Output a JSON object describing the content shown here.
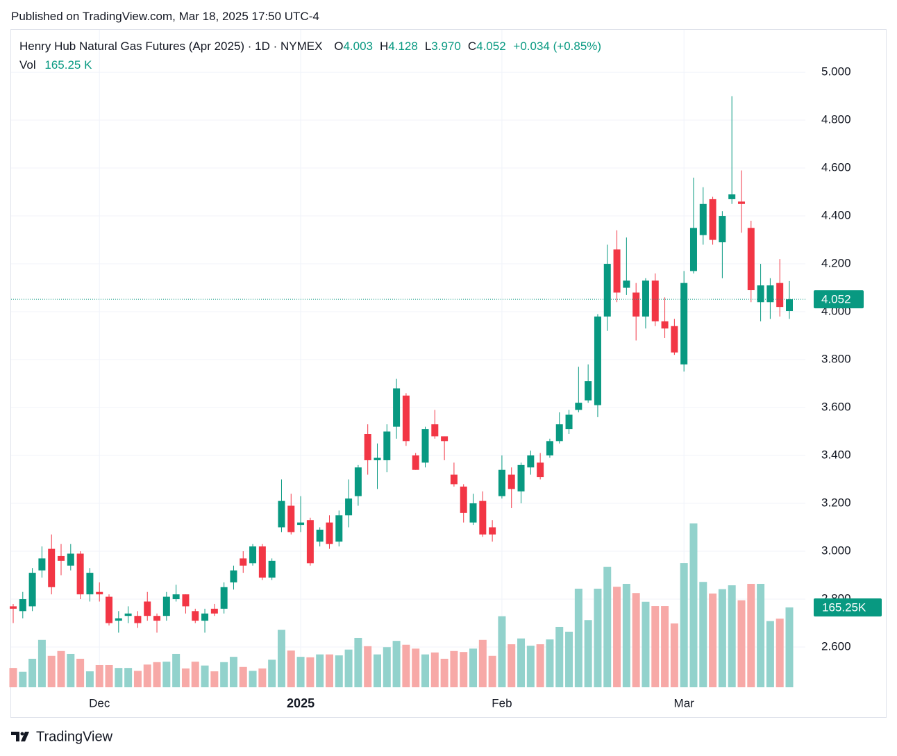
{
  "header": {
    "published": "Published on TradingView.com, Mar 18, 2025 17:50 UTC-4",
    "symbol": "Henry Hub Natural Gas Futures (Apr 2025) · 1D · NYMEX",
    "ohlc": [
      {
        "label": "O",
        "value": "4.003"
      },
      {
        "label": "H",
        "value": "4.128"
      },
      {
        "label": "L",
        "value": "3.970"
      },
      {
        "label": "C",
        "value": "4.052"
      }
    ],
    "change": "+0.034 (+0.85%)",
    "volume_label": "Vol",
    "volume_value": "165.25 K"
  },
  "footer": {
    "brand": "TradingView"
  },
  "chart_data": {
    "type": "candlestick",
    "categories": [
      null,
      null,
      null,
      null,
      null,
      null,
      null,
      null,
      null,
      "Dec",
      null,
      null,
      null,
      null,
      null,
      null,
      null,
      null,
      null,
      null,
      null,
      null,
      null,
      null,
      null,
      null,
      null,
      null,
      null,
      null,
      "2025",
      null,
      null,
      null,
      null,
      null,
      null,
      null,
      null,
      null,
      null,
      null,
      null,
      null,
      null,
      null,
      null,
      null,
      null,
      null,
      null,
      "Feb",
      null,
      null,
      null,
      null,
      null,
      null,
      null,
      null,
      null,
      null,
      null,
      null,
      null,
      null,
      null,
      null,
      null,
      null,
      "Mar",
      null,
      null,
      null,
      null,
      null,
      null,
      null,
      null,
      null,
      null,
      null
    ],
    "open": [
      2.77,
      2.75,
      2.77,
      2.92,
      3.01,
      2.98,
      2.94,
      2.99,
      2.82,
      2.83,
      2.81,
      2.71,
      2.73,
      2.73,
      2.79,
      2.73,
      2.73,
      2.8,
      2.82,
      2.75,
      2.71,
      2.76,
      2.76,
      2.87,
      2.97,
      2.95,
      3.02,
      2.89,
      3.1,
      3.19,
      3.11,
      3.13,
      3.04,
      3.12,
      3.04,
      3.15,
      3.23,
      3.49,
      3.38,
      3.38,
      3.52,
      3.65,
      3.4,
      3.37,
      3.53,
      3.48,
      3.32,
      3.27,
      3.12,
      3.21,
      3.1,
      3.23,
      3.32,
      3.25,
      3.35,
      3.37,
      3.4,
      3.46,
      3.51,
      3.59,
      3.63,
      3.61,
      3.98,
      4.26,
      4.1,
      4.08,
      3.98,
      4.13,
      3.96,
      3.94,
      3.78,
      4.17,
      4.32,
      4.47,
      4.29,
      4.47,
      4.46,
      4.35,
      4.04,
      4.04,
      4.12,
      4.003
    ],
    "high": [
      2.78,
      2.83,
      2.93,
      3.02,
      3.07,
      3.03,
      3.03,
      3.0,
      2.93,
      2.87,
      2.82,
      2.75,
      2.77,
      2.75,
      2.83,
      2.74,
      2.83,
      2.86,
      2.82,
      2.76,
      2.76,
      2.78,
      2.87,
      2.94,
      3.0,
      3.03,
      3.03,
      2.97,
      3.3,
      3.24,
      3.23,
      3.14,
      3.1,
      3.15,
      3.17,
      3.3,
      3.36,
      3.53,
      3.45,
      3.53,
      3.72,
      3.66,
      3.41,
      3.52,
      3.59,
      3.48,
      3.37,
      3.28,
      3.24,
      3.25,
      3.13,
      3.4,
      3.35,
      3.37,
      3.42,
      3.41,
      3.47,
      3.58,
      3.59,
      3.77,
      3.78,
      3.99,
      4.28,
      4.34,
      4.31,
      4.12,
      4.14,
      4.16,
      4.06,
      3.97,
      4.17,
      4.56,
      4.52,
      4.48,
      4.42,
      4.9,
      4.59,
      4.38,
      4.2,
      4.14,
      4.22,
      4.128
    ],
    "low": [
      2.7,
      2.72,
      2.75,
      2.89,
      2.82,
      2.9,
      2.92,
      2.8,
      2.79,
      2.79,
      2.69,
      2.66,
      2.7,
      2.68,
      2.71,
      2.66,
      2.71,
      2.79,
      2.74,
      2.7,
      2.66,
      2.73,
      2.74,
      2.84,
      2.91,
      2.94,
      2.88,
      2.88,
      3.08,
      3.07,
      3.08,
      2.94,
      3.02,
      3.01,
      3.02,
      3.1,
      3.19,
      3.32,
      3.26,
      3.33,
      3.47,
      3.44,
      3.34,
      3.35,
      3.47,
      3.38,
      3.27,
      3.12,
      3.11,
      3.06,
      3.04,
      3.22,
      3.18,
      3.2,
      3.32,
      3.3,
      3.39,
      3.45,
      3.49,
      3.58,
      3.62,
      3.56,
      3.92,
      4.04,
      4.07,
      3.88,
      3.93,
      3.94,
      3.89,
      3.82,
      3.75,
      4.16,
      4.28,
      4.28,
      4.14,
      4.45,
      4.33,
      4.04,
      3.96,
      3.97,
      3.98,
      3.97
    ],
    "close": [
      2.76,
      2.8,
      2.91,
      2.97,
      2.85,
      2.96,
      2.99,
      2.82,
      2.91,
      2.82,
      2.7,
      2.72,
      2.74,
      2.7,
      2.73,
      2.71,
      2.81,
      2.82,
      2.77,
      2.71,
      2.74,
      2.74,
      2.85,
      2.92,
      2.94,
      3.02,
      2.89,
      2.96,
      3.21,
      3.08,
      3.12,
      2.95,
      3.09,
      3.03,
      3.15,
      3.22,
      3.35,
      3.38,
      3.39,
      3.5,
      3.68,
      3.46,
      3.34,
      3.51,
      3.48,
      3.46,
      3.28,
      3.16,
      3.2,
      3.07,
      3.07,
      3.34,
      3.26,
      3.36,
      3.4,
      3.31,
      3.46,
      3.53,
      3.57,
      3.62,
      3.71,
      3.98,
      4.2,
      4.08,
      4.13,
      3.98,
      4.13,
      3.96,
      3.93,
      3.83,
      4.12,
      4.35,
      4.45,
      4.3,
      4.4,
      4.49,
      4.45,
      4.09,
      4.11,
      4.11,
      4.02,
      4.052
    ],
    "volume": [
      40,
      32,
      59,
      98,
      65,
      75,
      69,
      59,
      33,
      46,
      46,
      40,
      40,
      34,
      47,
      52,
      53,
      69,
      39,
      53,
      45,
      33,
      52,
      63,
      42,
      34,
      39,
      57,
      119,
      76,
      63,
      62,
      68,
      68,
      66,
      78,
      102,
      85,
      68,
      83,
      96,
      88,
      80,
      68,
      72,
      59,
      75,
      73,
      80,
      98,
      65,
      147,
      89,
      101,
      86,
      89,
      99,
      125,
      115,
      204,
      139,
      204,
      249,
      208,
      214,
      195,
      177,
      168,
      168,
      132,
      257,
      339,
      218,
      194,
      203,
      211,
      180,
      214,
      214,
      137,
      142,
      165.25
    ],
    "last_volume_label": "165.25K",
    "up_color": "#089981",
    "down_color": "#f23645",
    "volume_up_color": "#92d2cc",
    "volume_down_color": "#f7a9a7",
    "ylim": [
      2.432,
      5.177
    ],
    "yticks": [
      {
        "value": 2.6,
        "label": "2.600"
      },
      {
        "value": 2.8,
        "label": "2.800"
      },
      {
        "value": 3.0,
        "label": "3.000"
      },
      {
        "value": 3.2,
        "label": "3.200"
      },
      {
        "value": 3.4,
        "label": "3.400"
      },
      {
        "value": 3.6,
        "label": "3.600"
      },
      {
        "value": 3.8,
        "label": "3.800"
      },
      {
        "value": 4.0,
        "label": "4.000"
      },
      {
        "value": 4.2,
        "label": "4.200"
      },
      {
        "value": 4.4,
        "label": "4.400"
      },
      {
        "value": 4.6,
        "label": "4.600"
      },
      {
        "value": 4.8,
        "label": "4.800"
      },
      {
        "value": 5.0,
        "label": "5.000"
      }
    ],
    "grid": true
  }
}
